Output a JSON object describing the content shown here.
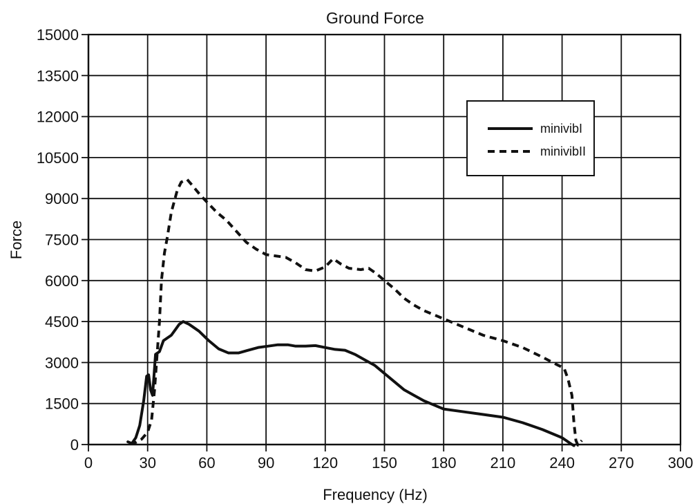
{
  "chart_data": {
    "type": "line",
    "title": "Ground Force",
    "xlabel": "Frequency (Hz)",
    "ylabel": "Force",
    "xlim": [
      0,
      300
    ],
    "ylim": [
      0,
      15000
    ],
    "xticks": [
      0,
      30,
      60,
      90,
      120,
      150,
      180,
      210,
      240,
      270,
      300
    ],
    "yticks": [
      0,
      1500,
      3000,
      4500,
      6000,
      7500,
      9000,
      10500,
      12000,
      13500,
      15000
    ],
    "grid": true,
    "legend_position": "top-right",
    "series": [
      {
        "name": "minivibI",
        "line_style": "solid",
        "color": "#111111",
        "points": [
          [
            20,
            100
          ],
          [
            22,
            40
          ],
          [
            24,
            250
          ],
          [
            26,
            700
          ],
          [
            28,
            1600
          ],
          [
            29.5,
            2500
          ],
          [
            30.5,
            2550
          ],
          [
            31.5,
            2000
          ],
          [
            32.5,
            1800
          ],
          [
            34,
            3300
          ],
          [
            36,
            3400
          ],
          [
            38,
            3800
          ],
          [
            42,
            4000
          ],
          [
            46,
            4400
          ],
          [
            48,
            4500
          ],
          [
            51,
            4400
          ],
          [
            56,
            4150
          ],
          [
            61,
            3800
          ],
          [
            66,
            3500
          ],
          [
            71,
            3350
          ],
          [
            76,
            3350
          ],
          [
            81,
            3450
          ],
          [
            86,
            3550
          ],
          [
            91,
            3600
          ],
          [
            96,
            3650
          ],
          [
            101,
            3650
          ],
          [
            105,
            3600
          ],
          [
            110,
            3600
          ],
          [
            115,
            3620
          ],
          [
            120,
            3550
          ],
          [
            125,
            3480
          ],
          [
            130,
            3450
          ],
          [
            135,
            3300
          ],
          [
            140,
            3100
          ],
          [
            145,
            2900
          ],
          [
            150,
            2600
          ],
          [
            155,
            2300
          ],
          [
            160,
            2000
          ],
          [
            165,
            1800
          ],
          [
            170,
            1600
          ],
          [
            175,
            1450
          ],
          [
            180,
            1300
          ],
          [
            190,
            1200
          ],
          [
            200,
            1100
          ],
          [
            210,
            1000
          ],
          [
            220,
            800
          ],
          [
            230,
            550
          ],
          [
            240,
            250
          ],
          [
            244,
            50
          ],
          [
            246,
            -40
          ]
        ]
      },
      {
        "name": "minivibII",
        "line_style": "dashed",
        "color": "#111111",
        "points": [
          [
            21,
            30
          ],
          [
            24,
            80
          ],
          [
            27,
            200
          ],
          [
            30,
            450
          ],
          [
            32,
            900
          ],
          [
            33.5,
            2000
          ],
          [
            34.5,
            3000
          ],
          [
            36,
            4500
          ],
          [
            37,
            6000
          ],
          [
            38.5,
            7000
          ],
          [
            40,
            7600
          ],
          [
            42,
            8500
          ],
          [
            45,
            9300
          ],
          [
            47,
            9600
          ],
          [
            50,
            9700
          ],
          [
            53,
            9450
          ],
          [
            57,
            9100
          ],
          [
            61,
            8800
          ],
          [
            65,
            8500
          ],
          [
            70,
            8200
          ],
          [
            75,
            7800
          ],
          [
            80,
            7400
          ],
          [
            85,
            7150
          ],
          [
            90,
            6950
          ],
          [
            95,
            6900
          ],
          [
            100,
            6850
          ],
          [
            105,
            6650
          ],
          [
            110,
            6400
          ],
          [
            115,
            6350
          ],
          [
            120,
            6500
          ],
          [
            124,
            6800
          ],
          [
            128,
            6600
          ],
          [
            132,
            6450
          ],
          [
            138,
            6400
          ],
          [
            142,
            6450
          ],
          [
            146,
            6250
          ],
          [
            150,
            6000
          ],
          [
            155,
            5700
          ],
          [
            160,
            5350
          ],
          [
            165,
            5100
          ],
          [
            170,
            4900
          ],
          [
            175,
            4750
          ],
          [
            180,
            4600
          ],
          [
            190,
            4300
          ],
          [
            200,
            4000
          ],
          [
            210,
            3800
          ],
          [
            220,
            3550
          ],
          [
            230,
            3200
          ],
          [
            238,
            2900
          ],
          [
            241,
            2800
          ],
          [
            243,
            2400
          ],
          [
            245,
            1800
          ],
          [
            246,
            800
          ],
          [
            247,
            150
          ],
          [
            248,
            -20
          ],
          [
            250,
            150
          ]
        ]
      }
    ]
  }
}
